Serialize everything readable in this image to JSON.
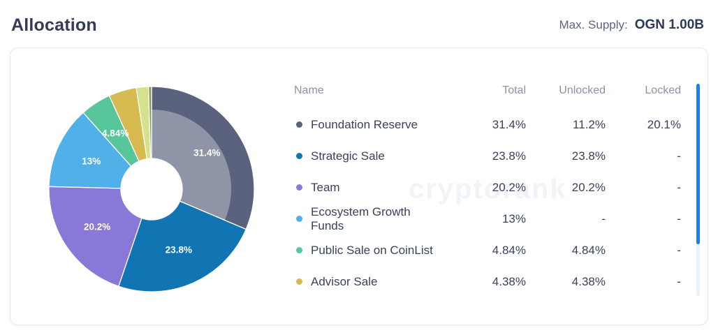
{
  "header": {
    "title": "Allocation",
    "max_supply_label": "Max. Supply:",
    "max_supply_value": "OGN 1.00B"
  },
  "watermark": "cryptorank",
  "colors": {
    "scrollbar_thumb": "#1d80f2",
    "scrollbar_track": "#e8f1fc",
    "highlight_overlay": "rgba(255,255,255,0.32)"
  },
  "chart_data": {
    "type": "pie",
    "donut": true,
    "start_angle_deg": 0,
    "direction": "clockwise",
    "slices": [
      {
        "name": "Foundation Reserve",
        "value": 31.4,
        "label": "31.4%",
        "color": "#5a627e",
        "highlight_overlay": true
      },
      {
        "name": "Strategic Sale",
        "value": 23.8,
        "label": "23.8%",
        "color": "#1175b4",
        "highlight_overlay": false
      },
      {
        "name": "Team",
        "value": 20.2,
        "label": "20.2%",
        "color": "#8a78d8",
        "highlight_overlay": false
      },
      {
        "name": "Ecosystem Growth Funds",
        "value": 13.0,
        "label": "13%",
        "color": "#52b0e8",
        "highlight_overlay": false
      },
      {
        "name": "Public Sale on CoinList",
        "value": 4.84,
        "label": "4.84%",
        "color": "#57c69b",
        "highlight_overlay": false
      },
      {
        "name": "Advisor Sale",
        "value": 4.38,
        "label": "",
        "color": "#d7ba50",
        "highlight_overlay": false
      },
      {
        "name": "",
        "value": 1.9,
        "label": "",
        "color": "#d5e28d",
        "highlight_overlay": false
      },
      {
        "name": "",
        "value": 0.48,
        "label": "",
        "color": "#8a985c",
        "highlight_overlay": false
      }
    ]
  },
  "table": {
    "columns": {
      "name": "Name",
      "total": "Total",
      "unlocked": "Unlocked",
      "locked": "Locked"
    },
    "rows": [
      {
        "name": "Foundation Reserve",
        "color": "#5a627e",
        "total": "31.4%",
        "unlocked": "11.2%",
        "locked": "20.1%"
      },
      {
        "name": "Strategic Sale",
        "color": "#1175b4",
        "total": "23.8%",
        "unlocked": "23.8%",
        "locked": "-"
      },
      {
        "name": "Team",
        "color": "#8a78d8",
        "total": "20.2%",
        "unlocked": "20.2%",
        "locked": "-"
      },
      {
        "name": "Ecosystem Growth Funds",
        "color": "#52b0e8",
        "total": "13%",
        "unlocked": "-",
        "locked": "-"
      },
      {
        "name": "Public Sale on CoinList",
        "color": "#57c69b",
        "total": "4.84%",
        "unlocked": "4.84%",
        "locked": "-"
      },
      {
        "name": "Advisor Sale",
        "color": "#d7ba50",
        "total": "4.38%",
        "unlocked": "4.38%",
        "locked": "-"
      }
    ]
  }
}
